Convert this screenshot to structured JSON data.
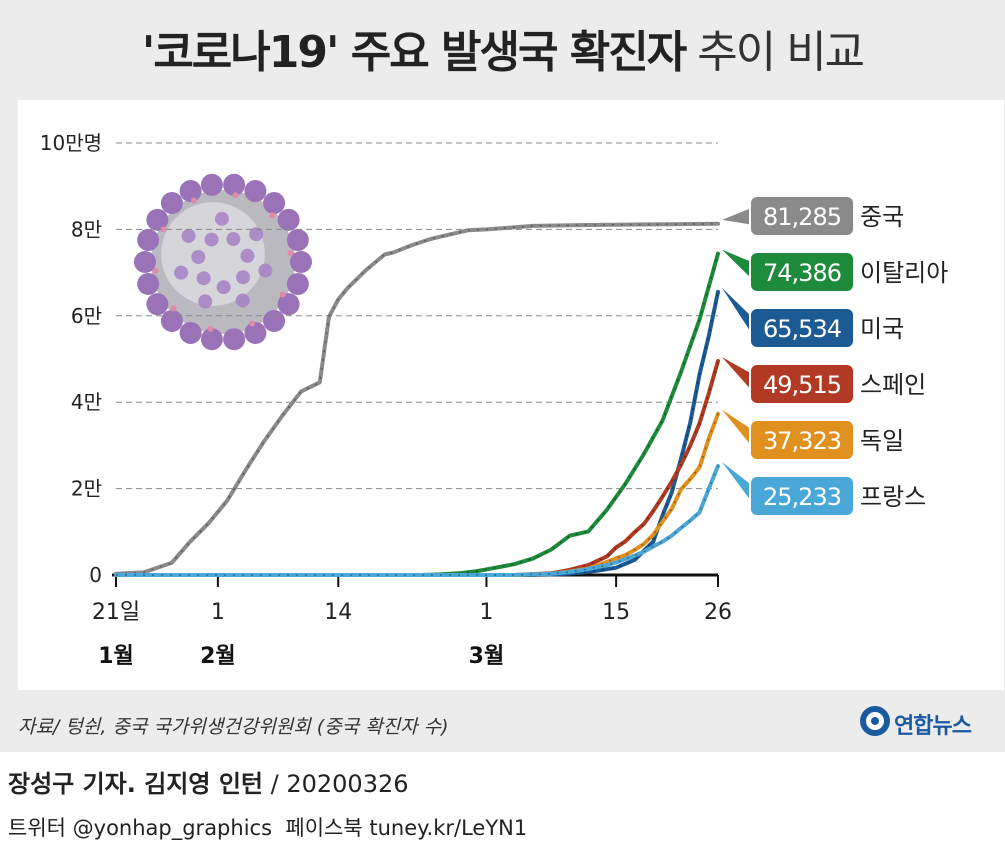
{
  "title": {
    "strong": "'코로나19' 주요 발생국 확진자",
    "light": "추이 비교"
  },
  "source": "자료/ 텅쉰, 중국 국가위생건강위원회 (중국 확진자 수)",
  "brand": {
    "name": "연합뉴스"
  },
  "credit": {
    "reporters": "장성구 기자. 김지영 인턴",
    "date": "/ 20200326"
  },
  "social": {
    "twitter": "트위터 @yonhap_graphics",
    "facebook": "페이스북 tuney.kr/LeYN1"
  },
  "colors": {
    "china": "#8a8a8a",
    "italy": "#1e8a3c",
    "usa": "#1c5a94",
    "spain": "#b03a24",
    "germany": "#e0901e",
    "france": "#4aa8d8"
  },
  "chart_data": {
    "type": "line",
    "x_unit": "days since Jan 21, 2020",
    "xlim": [
      0,
      65
    ],
    "ylim": [
      0,
      100000
    ],
    "y_ticks": [
      {
        "value": 0,
        "label": "0"
      },
      {
        "value": 20000,
        "label": "2만"
      },
      {
        "value": 40000,
        "label": "4만"
      },
      {
        "value": 60000,
        "label": "6만"
      },
      {
        "value": 80000,
        "label": "8만"
      },
      {
        "value": 100000,
        "label": "10만명"
      }
    ],
    "x_ticks": [
      {
        "value": 0,
        "label": "21일",
        "month": "1월"
      },
      {
        "value": 11,
        "label": "1",
        "month": "2월"
      },
      {
        "value": 24,
        "label": "14",
        "month": ""
      },
      {
        "value": 40,
        "label": "1",
        "month": "3월"
      },
      {
        "value": 54,
        "label": "15",
        "month": ""
      },
      {
        "value": 65,
        "label": "26",
        "month": ""
      }
    ],
    "series": [
      {
        "key": "china",
        "name": "중국",
        "value_label": "81,285",
        "color": "#8a8a8a",
        "x": [
          0,
          3,
          6,
          8,
          10,
          12,
          14,
          16,
          18,
          20,
          22,
          23,
          24,
          25,
          27,
          29,
          30,
          32,
          34,
          36,
          38,
          40,
          45,
          50,
          55,
          60,
          65
        ],
        "y": [
          300,
          600,
          2800,
          7700,
          12000,
          17200,
          24300,
          31000,
          37000,
          42500,
          44600,
          59800,
          63800,
          66400,
          70600,
          74200,
          74700,
          76400,
          77800,
          78800,
          79800,
          80000,
          80800,
          81000,
          81100,
          81200,
          81285
        ]
      },
      {
        "key": "italy",
        "name": "이탈리아",
        "value_label": "74,386",
        "color": "#1e8a3c",
        "x": [
          0,
          33,
          35,
          37,
          39,
          41,
          43,
          45,
          47,
          49,
          51,
          53,
          55,
          57,
          59,
          61,
          63,
          65
        ],
        "y": [
          0,
          0,
          150,
          400,
          900,
          1700,
          2500,
          3800,
          5900,
          9100,
          10100,
          15100,
          21100,
          28000,
          35700,
          47000,
          59100,
          74386
        ]
      },
      {
        "key": "usa",
        "name": "미국",
        "value_label": "65,534",
        "color": "#1c5a94",
        "x": [
          0,
          45,
          48,
          50,
          52,
          54,
          56,
          58,
          59,
          60,
          61,
          62,
          63,
          64,
          65
        ],
        "y": [
          0,
          0,
          200,
          500,
          1000,
          1700,
          3500,
          7700,
          13700,
          19100,
          26900,
          35200,
          46400,
          55200,
          65534
        ]
      },
      {
        "key": "spain",
        "name": "스페인",
        "value_label": "49,515",
        "color": "#b03a24",
        "x": [
          0,
          43,
          47,
          49,
          51,
          53,
          54,
          55,
          56,
          57,
          58,
          59,
          60,
          61,
          62,
          63,
          64,
          65
        ],
        "y": [
          0,
          0,
          400,
          1200,
          2300,
          4300,
          6400,
          7800,
          9900,
          11800,
          14800,
          18100,
          21600,
          25500,
          29900,
          35100,
          42000,
          49515
        ]
      },
      {
        "key": "germany",
        "name": "독일",
        "value_label": "37,323",
        "color": "#e0901e",
        "x": [
          0,
          43,
          47,
          49,
          51,
          53,
          54,
          55,
          56,
          57,
          58,
          59,
          60,
          61,
          62,
          63,
          64,
          65
        ],
        "y": [
          0,
          0,
          300,
          800,
          1500,
          3000,
          3900,
          4600,
          5800,
          7200,
          9300,
          12300,
          15300,
          19800,
          22200,
          24900,
          31500,
          37323
        ]
      },
      {
        "key": "france",
        "name": "프랑스",
        "value_label": "25,233",
        "color": "#4aa8d8",
        "x": [
          0,
          43,
          47,
          49,
          51,
          53,
          54,
          55,
          56,
          57,
          58,
          59,
          60,
          61,
          62,
          63,
          64,
          65
        ],
        "y": [
          0,
          0,
          300,
          700,
          1400,
          2300,
          2900,
          3700,
          4500,
          5400,
          6600,
          7700,
          9100,
          10900,
          12600,
          14500,
          19900,
          25233
        ]
      }
    ]
  }
}
